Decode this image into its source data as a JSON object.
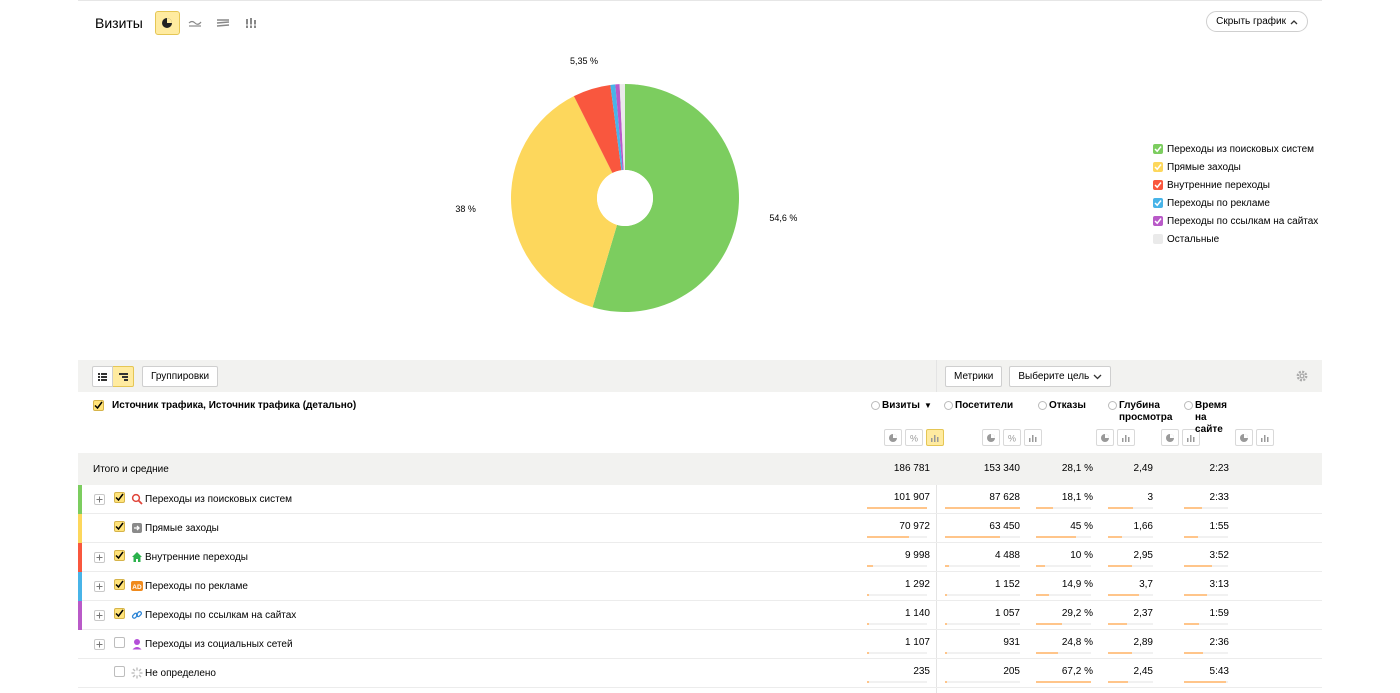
{
  "chart_header": {
    "title": "Визиты",
    "hide_label": "Скрыть график"
  },
  "chart_data": {
    "type": "pie",
    "donut": true,
    "labels": [
      "Переходы из поисковых систем",
      "Прямые заходы",
      "Внутренние переходы",
      "Переходы по рекламе",
      "Переходы по ссылкам на сайтах",
      "Остальные"
    ],
    "values": [
      54.6,
      38.0,
      5.35,
      0.69,
      0.61,
      0.75
    ],
    "colors": [
      "#7ccd5f",
      "#fdd75c",
      "#f9573e",
      "#48b4e8",
      "#b95ac8",
      "#eaeaea"
    ],
    "data_labels": [
      "54,6 %",
      "38 %",
      "5,35 %",
      "",
      "",
      ""
    ],
    "legend": "right"
  },
  "legend_items": [
    {
      "label": "Переходы из поисковых систем",
      "color": "#7ccd5f",
      "checked": true
    },
    {
      "label": "Прямые заходы",
      "color": "#fdd75c",
      "checked": true
    },
    {
      "label": "Внутренние переходы",
      "color": "#f9573e",
      "checked": true
    },
    {
      "label": "Переходы по рекламе",
      "color": "#48b4e8",
      "checked": true
    },
    {
      "label": "Переходы по ссылкам на сайтах",
      "color": "#b95ac8",
      "checked": true
    },
    {
      "label": "Остальные",
      "color": "#eaeaea",
      "checked": false
    }
  ],
  "toolbar": {
    "groupings_label": "Группировки",
    "metrics_label": "Метрики",
    "goal_label": "Выберите цель"
  },
  "table": {
    "dimension_title": "Источник трафика, Источник трафика (детально)",
    "columns": [
      {
        "label": "Визиты",
        "sorted": true,
        "sort_marker": "▼"
      },
      {
        "label": "Посетители"
      },
      {
        "label": "Отказы"
      },
      {
        "label": "Глубина просмотра"
      },
      {
        "label": "Время на сайте"
      }
    ],
    "totals_label": "Итого и средние",
    "totals": [
      "186 781",
      "153 340",
      "28,1 %",
      "2,49",
      "2:23"
    ],
    "rows": [
      {
        "label": "Переходы из поисковых систем",
        "color": "#7ccd5f",
        "icon": "search-icon",
        "checked": true,
        "expandable": true,
        "values": [
          "101 907",
          "87 628",
          "18,1 %",
          "3",
          "2:33"
        ],
        "fill": [
          1.0,
          1.0,
          0.3,
          0.55,
          0.42
        ]
      },
      {
        "label": "Прямые заходы",
        "color": "#fdd75c",
        "icon": "direct-entry-icon",
        "checked": true,
        "expandable": false,
        "values": [
          "70 972",
          "63 450",
          "45 %",
          "1,66",
          "1:55"
        ],
        "fill": [
          0.7,
          0.73,
          0.72,
          0.3,
          0.32
        ]
      },
      {
        "label": "Внутренние переходы",
        "color": "#f9573e",
        "icon": "home-icon",
        "checked": true,
        "expandable": true,
        "values": [
          "9 998",
          "4 488",
          "10 %",
          "2,95",
          "3:52"
        ],
        "fill": [
          0.1,
          0.05,
          0.16,
          0.54,
          0.64
        ]
      },
      {
        "label": "Переходы по рекламе",
        "color": "#48b4e8",
        "icon": "ad-icon",
        "checked": true,
        "expandable": true,
        "values": [
          "1 292",
          "1 152",
          "14,9 %",
          "3,7",
          "3:13"
        ],
        "fill": [
          0.02,
          0.02,
          0.24,
          0.68,
          0.53
        ]
      },
      {
        "label": "Переходы по ссылкам на сайтах",
        "color": "#b95ac8",
        "icon": "link-icon",
        "checked": true,
        "expandable": true,
        "values": [
          "1 140",
          "1 057",
          "29,2 %",
          "2,37",
          "1:59"
        ],
        "fill": [
          0.02,
          0.02,
          0.47,
          0.43,
          0.33
        ]
      },
      {
        "label": "Переходы из социальных сетей",
        "color": "",
        "icon": "social-icon",
        "checked": false,
        "expandable": true,
        "values": [
          "1 107",
          "931",
          "24,8 %",
          "2,89",
          "2:36"
        ],
        "fill": [
          0.02,
          0.02,
          0.4,
          0.53,
          0.43
        ]
      },
      {
        "label": "Не определено",
        "color": "",
        "icon": "undefined-icon",
        "checked": false,
        "expandable": false,
        "values": [
          "235",
          "205",
          "67,2 %",
          "2,45",
          "5:43"
        ],
        "fill": [
          0.01,
          0.01,
          1.0,
          0.45,
          0.95
        ]
      }
    ]
  }
}
